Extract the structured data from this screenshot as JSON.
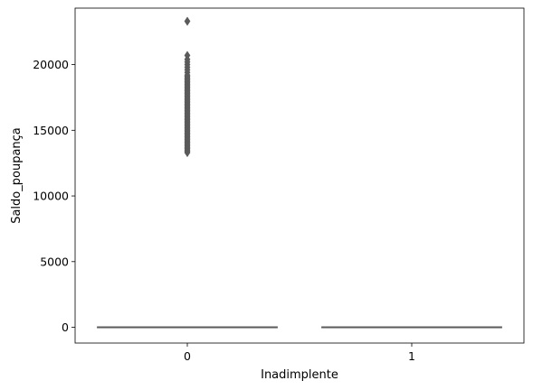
{
  "chart_data": {
    "type": "box",
    "categories": [
      "0",
      "1"
    ],
    "xlabel": "Inadimplente",
    "ylabel": "Saldo_poupança",
    "ylim": [
      -1200,
      24300
    ],
    "yticks": [
      0,
      5000,
      10000,
      15000,
      20000
    ],
    "grid": false,
    "box_color": "#5b5b5b",
    "series": [
      {
        "category": "0",
        "q1": 0,
        "median": 0,
        "q3": 0,
        "whisker_low": 0,
        "whisker_high": 0,
        "outliers": [
          13300,
          13400,
          13500,
          13600,
          13700,
          13800,
          13900,
          14000,
          14100,
          14200,
          14300,
          14400,
          14500,
          14600,
          14700,
          14800,
          14900,
          15000,
          15100,
          15200,
          15300,
          15400,
          15500,
          15600,
          15700,
          15800,
          15900,
          16000,
          16100,
          16200,
          16300,
          16400,
          16500,
          16600,
          16700,
          16800,
          16900,
          17000,
          17100,
          17200,
          17300,
          17400,
          17500,
          17600,
          17700,
          17800,
          17900,
          18000,
          18100,
          18200,
          18300,
          18400,
          18500,
          18600,
          18700,
          18800,
          18900,
          19000,
          19100,
          19200,
          19400,
          19600,
          19800,
          20000,
          20200,
          20400,
          20700,
          23300
        ]
      },
      {
        "category": "1",
        "q1": 0,
        "median": 0,
        "q3": 0,
        "whisker_low": 0,
        "whisker_high": 0,
        "outliers": []
      }
    ]
  }
}
